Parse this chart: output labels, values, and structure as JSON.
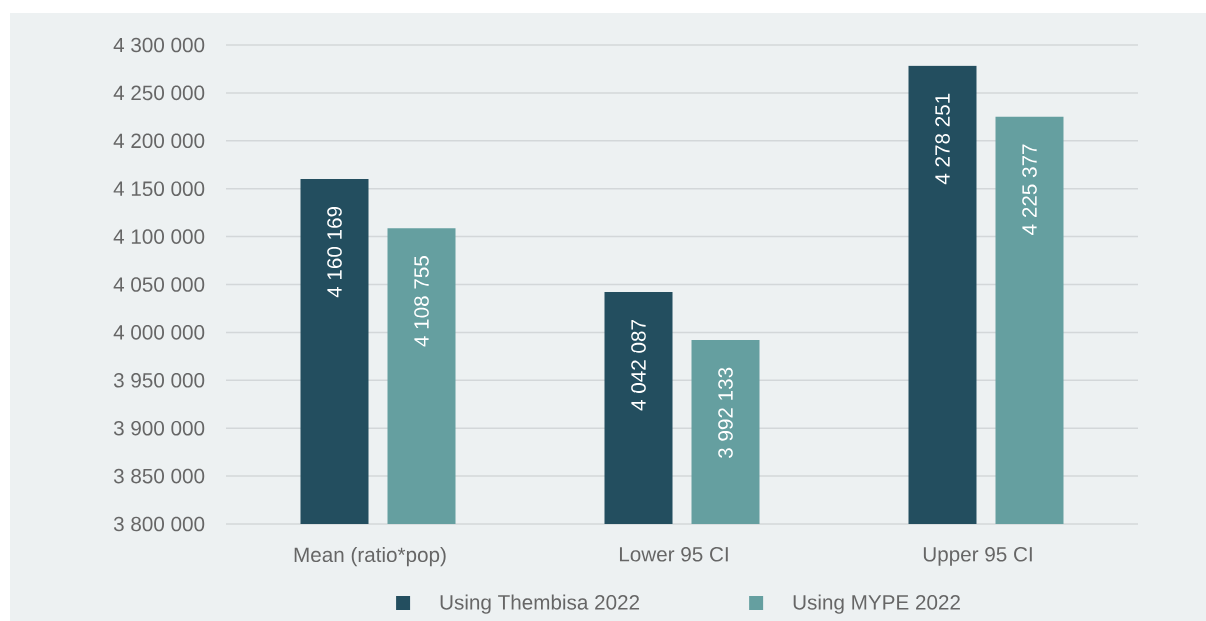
{
  "chart_data": {
    "type": "bar",
    "categories": [
      "Mean (ratio*pop)",
      "Lower 95 CI",
      "Upper 95 CI"
    ],
    "series": [
      {
        "name": "Using Thembisa 2022",
        "color": "#234e5f",
        "values": [
          4160169,
          4042087,
          4278251
        ],
        "value_labels": [
          "4 160 169",
          "4 042 087",
          "4 278 251"
        ]
      },
      {
        "name": "Using MYPE 2022",
        "color": "#659fa0",
        "values": [
          4108755,
          3992133,
          4225377
        ],
        "value_labels": [
          "4 108 755",
          "3 992 133",
          "4 225 377"
        ]
      }
    ],
    "ylim": [
      3800000,
      4300000
    ],
    "yticks": [
      {
        "value": 3800000,
        "label": "3 800 000"
      },
      {
        "value": 3850000,
        "label": "3 850 000"
      },
      {
        "value": 3900000,
        "label": "3 900 000"
      },
      {
        "value": 3950000,
        "label": "3 950 000"
      },
      {
        "value": 4000000,
        "label": "4 000 000"
      },
      {
        "value": 4050000,
        "label": "4 050 000"
      },
      {
        "value": 4100000,
        "label": "4 100 000"
      },
      {
        "value": 4150000,
        "label": "4 150 000"
      },
      {
        "value": 4200000,
        "label": "4 200 000"
      },
      {
        "value": 4250000,
        "label": "4 250 000"
      },
      {
        "value": 4300000,
        "label": "4 300 000"
      }
    ],
    "grid": "y",
    "legend": "bottom"
  }
}
